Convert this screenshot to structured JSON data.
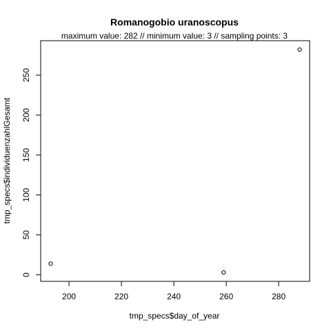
{
  "chart_data": {
    "type": "scatter",
    "title": "Romanogobio uranoscopus",
    "subtitle": "maximum value: 282  //  minimum value: 3  // sampling points: 3",
    "xlabel": "tmp_specs$day_of_year",
    "ylabel": "tmp_specs$individuenzahlGesamt",
    "xlim": [
      189.2,
      291.8
    ],
    "ylim": [
      -8.16,
      293.16
    ],
    "x_ticks": [
      200,
      220,
      240,
      260,
      280
    ],
    "y_ticks": [
      0,
      50,
      100,
      150,
      200,
      250
    ],
    "x": [
      193,
      259,
      288
    ],
    "y": [
      14,
      3,
      282
    ],
    "marker": "open-circle",
    "grid": false
  }
}
